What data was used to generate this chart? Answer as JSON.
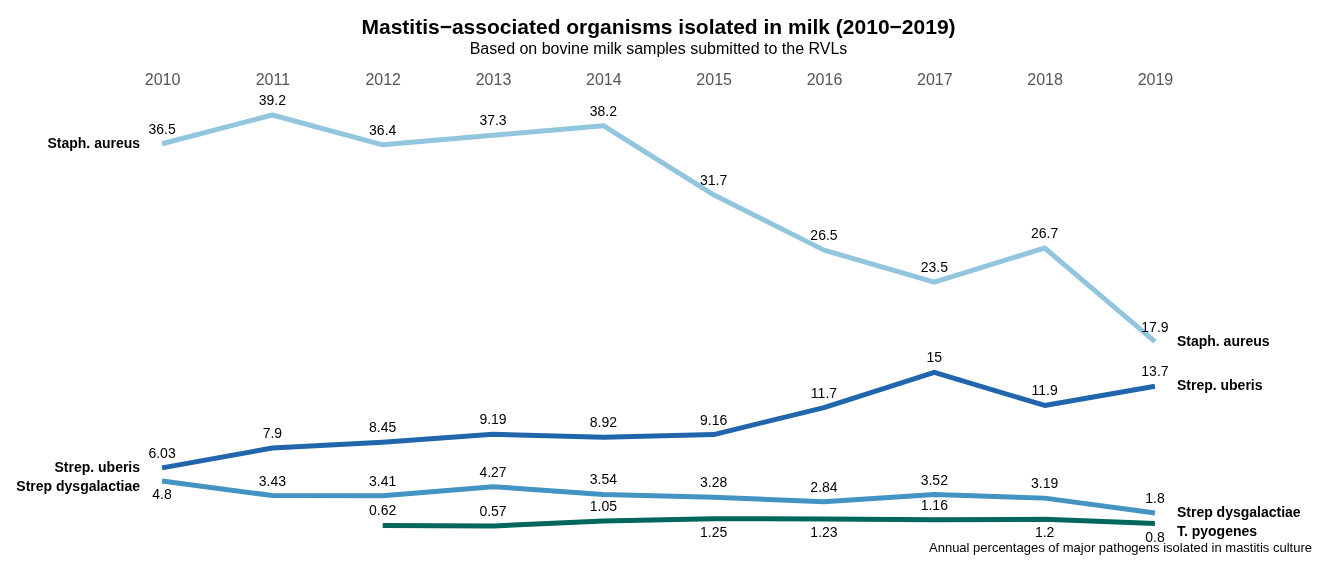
{
  "chart_data": {
    "type": "line",
    "title": "Mastitis−associated organisms isolated in milk (2010−2019)",
    "subtitle": "Based on bovine milk samples submitted to the RVLs",
    "categories": [
      "2010",
      "2011",
      "2012",
      "2013",
      "2014",
      "2015",
      "2016",
      "2017",
      "2018",
      "2019"
    ],
    "series": [
      {
        "name": "Staph. aureus",
        "color": "#92c5de",
        "values": [
          36.5,
          39.2,
          36.4,
          37.3,
          38.2,
          31.7,
          26.5,
          23.5,
          26.7,
          17.9
        ]
      },
      {
        "name": "Strep. uberis",
        "color": "#2166ac",
        "values": [
          6.03,
          7.9,
          8.45,
          9.19,
          8.92,
          9.16,
          11.7,
          15,
          11.9,
          13.7
        ]
      },
      {
        "name": "Strep dysgalactiae",
        "color": "#4393c3",
        "values": [
          4.8,
          3.43,
          3.41,
          4.27,
          3.54,
          3.28,
          2.84,
          3.52,
          3.19,
          1.8
        ]
      },
      {
        "name": "T. pyogenes",
        "color": "#01665e",
        "values": [
          null,
          null,
          0.62,
          0.57,
          1.05,
          1.25,
          1.23,
          1.16,
          1.2,
          0.8
        ]
      }
    ],
    "data_labels": true,
    "legend": false,
    "grid": false,
    "tick_labels": "x",
    "marker": "none",
    "line_style": "solid",
    "annotations": [
      "Annual percentages of major pathogens isolated in mastitis culture"
    ]
  }
}
